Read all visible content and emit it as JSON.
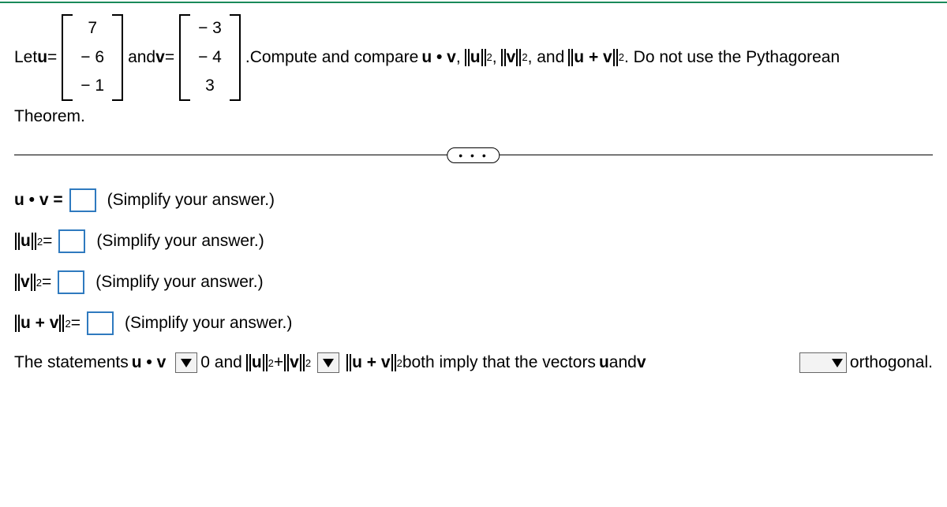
{
  "problem": {
    "let_u_eq": "Let ",
    "u_label": "u",
    "eq1": " = ",
    "u_vec": [
      "7",
      "− 6",
      "− 1"
    ],
    "and": " and ",
    "v_label": "v",
    "eq2": " = ",
    "v_vec": [
      "− 3",
      "− 4",
      "3"
    ],
    "period": ". ",
    "compute_prefix": "Compute and compare ",
    "uv": "u • v",
    "c1": ", ",
    "norm_u_sq": "u",
    "c2": ", ",
    "norm_v_sq": "v",
    "c3": ", and ",
    "norm_uv_sq": "u + v",
    "tail": ". Do not use the Pythagorean",
    "theorem_line": "Theorem."
  },
  "ellipsis": "• • •",
  "answers": {
    "l1_lhs": "u • v = ",
    "hint": "(Simplify your answer.)",
    "l2_u": "u",
    "l3_v": "v",
    "l4_uv": "u + v",
    "eq": " = "
  },
  "final": {
    "t1": "The statements ",
    "uv": "u • v",
    "t2": " 0 and ",
    "u": "u",
    "plus": " + ",
    "v": "v",
    "t3": " both imply that the vectors ",
    "ulab": "u",
    "t4": " and ",
    "vlab": "v",
    "t5": " orthogonal."
  },
  "colors": {
    "input_border": "#2f7abf",
    "top_border": "#1a8a5a"
  }
}
